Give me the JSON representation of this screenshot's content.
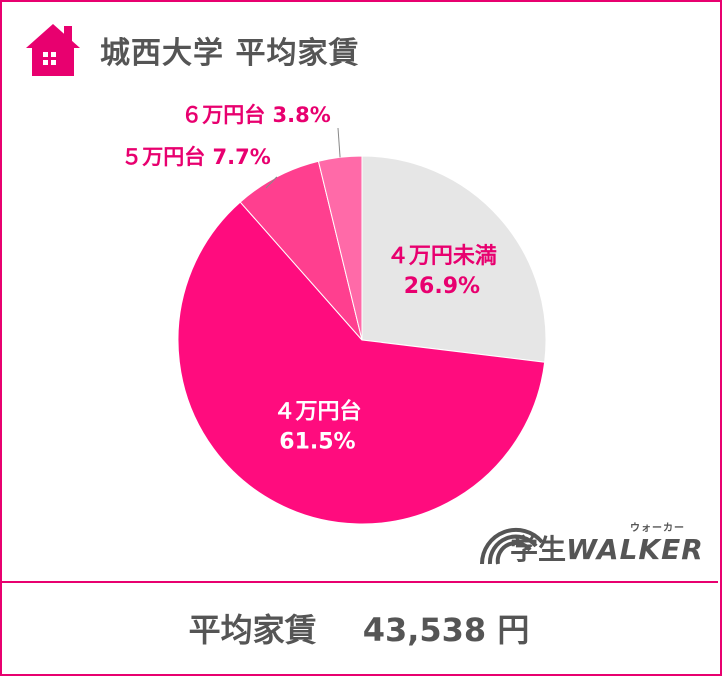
{
  "header": {
    "title": "城西大学  平均家賃",
    "icon": "house-icon"
  },
  "chart_data": {
    "type": "pie",
    "title": "城西大学  平均家賃",
    "start_angle_deg": 0,
    "direction": "clockwise",
    "slices": [
      {
        "label": "４万円未満",
        "value": 26.9,
        "value_label": "26.9%",
        "color": "#e6e6e6",
        "text_color": "#e8006f"
      },
      {
        "label": "４万円台",
        "value": 61.5,
        "value_label": "61.5%",
        "color": "#ff0c7e",
        "text_color": "#ffffff"
      },
      {
        "label": "５万円台",
        "value": 7.7,
        "value_label": "7.7%",
        "color": "#ff3f8f",
        "text_color": "#e8006f"
      },
      {
        "label": "６万円台",
        "value": 3.8,
        "value_label": "3.8%",
        "color": "#ff6aa8",
        "text_color": "#e8006f"
      }
    ]
  },
  "footer": {
    "label": "平均家賃",
    "amount": "43,538 円"
  },
  "logo": {
    "kanji": "学生",
    "brand": "WALKER",
    "ruby": "ウォーカー"
  },
  "colors": {
    "accent": "#e8006f",
    "text": "#555555"
  }
}
